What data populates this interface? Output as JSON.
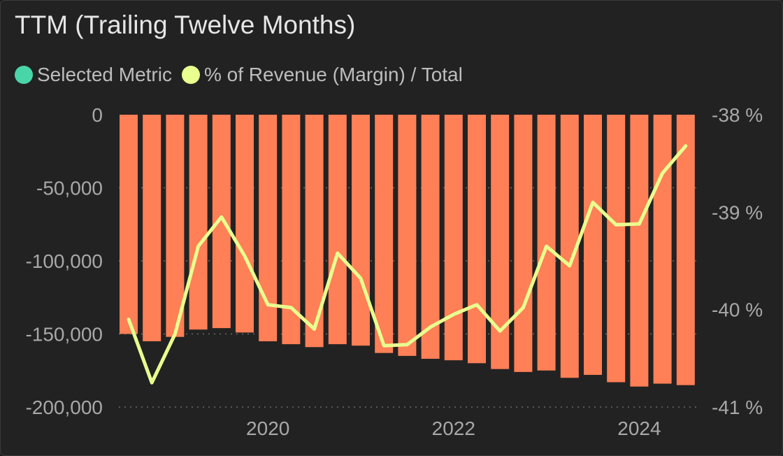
{
  "header": {
    "title": "TTM (Trailing Twelve Months)"
  },
  "legend": [
    {
      "label": "Selected Metric",
      "color": "#48d6a9"
    },
    {
      "label": "% of Revenue (Margin) / Total",
      "color": "#e9ff8f"
    }
  ],
  "chart_data": {
    "type": "bar",
    "bar_color": "#ff7f56",
    "line_color": "#e9ff8f",
    "x_labels": [
      "2020",
      "2022",
      "2024"
    ],
    "x_label_index": [
      6,
      14,
      22
    ],
    "left_axis": {
      "ylim": [
        -200000,
        0
      ],
      "ticks": [
        "0",
        "-50,000",
        "-100,000",
        "-150,000",
        "-200,000"
      ],
      "tick_values": [
        0,
        -50000,
        -100000,
        -150000,
        -200000
      ]
    },
    "right_axis": {
      "ylim": [
        -41,
        -38
      ],
      "ticks": [
        "-38 %",
        "-39 %",
        "-40 %",
        "-41 %"
      ],
      "tick_values": [
        -38,
        -39,
        -40,
        -41
      ]
    },
    "series": [
      {
        "name": "Selected Metric",
        "axis": "left",
        "values": [
          -150000,
          -155000,
          -152000,
          -147000,
          -146000,
          -149000,
          -155000,
          -157000,
          -159000,
          -157000,
          -158000,
          -163000,
          -165000,
          -167000,
          -168000,
          -170000,
          -174000,
          -176000,
          -175000,
          -180000,
          -178000,
          -183000,
          -186000,
          -184000,
          -185000
        ]
      },
      {
        "name": "% of Revenue (Margin) / Total",
        "axis": "right",
        "values": [
          -40.1,
          -40.75,
          -40.25,
          -39.35,
          -39.05,
          -39.45,
          -39.95,
          -39.98,
          -40.2,
          -39.42,
          -39.68,
          -40.37,
          -40.36,
          -40.18,
          -40.05,
          -39.95,
          -40.22,
          -39.98,
          -39.35,
          -39.55,
          -38.9,
          -39.13,
          -39.12,
          -38.6,
          -38.32
        ]
      }
    ]
  }
}
